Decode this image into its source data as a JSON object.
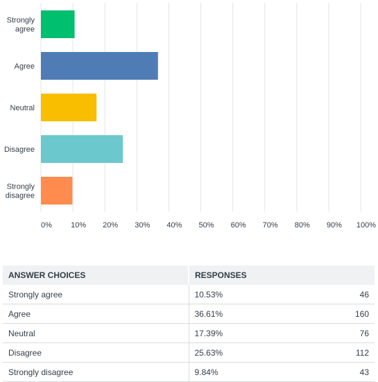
{
  "chart_data": {
    "type": "bar",
    "orientation": "horizontal",
    "categories": [
      "Strongly agree",
      "Agree",
      "Neutral",
      "Disagree",
      "Strongly disagree"
    ],
    "category_label_lines": [
      [
        "Strongly",
        "agree"
      ],
      [
        "Agree"
      ],
      [
        "Neutral"
      ],
      [
        "Disagree"
      ],
      [
        "Strongly",
        "disagree"
      ]
    ],
    "values": [
      10.53,
      36.61,
      17.39,
      25.63,
      9.84
    ],
    "colors": [
      "#00bf6f",
      "#507cb6",
      "#f9be00",
      "#6bc8cd",
      "#ff8b4f"
    ],
    "xlim": [
      0,
      100
    ],
    "x_ticks": [
      0,
      10,
      20,
      30,
      40,
      50,
      60,
      70,
      80,
      90,
      100
    ],
    "x_tick_labels": [
      "0%",
      "10%",
      "20%",
      "30%",
      "40%",
      "50%",
      "60%",
      "70%",
      "80%",
      "90%",
      "100%"
    ],
    "grid": true,
    "title": "",
    "xlabel": "",
    "ylabel": ""
  },
  "table": {
    "headers": {
      "choice": "ANSWER CHOICES",
      "responses": "RESPONSES"
    },
    "rows": [
      {
        "choice": "Strongly agree",
        "percent": "10.53%",
        "count": "46"
      },
      {
        "choice": "Agree",
        "percent": "36.61%",
        "count": "160"
      },
      {
        "choice": "Neutral",
        "percent": "17.39%",
        "count": "76"
      },
      {
        "choice": "Disagree",
        "percent": "25.63%",
        "count": "112"
      },
      {
        "choice": "Strongly disagree",
        "percent": "9.84%",
        "count": "43"
      }
    ]
  }
}
